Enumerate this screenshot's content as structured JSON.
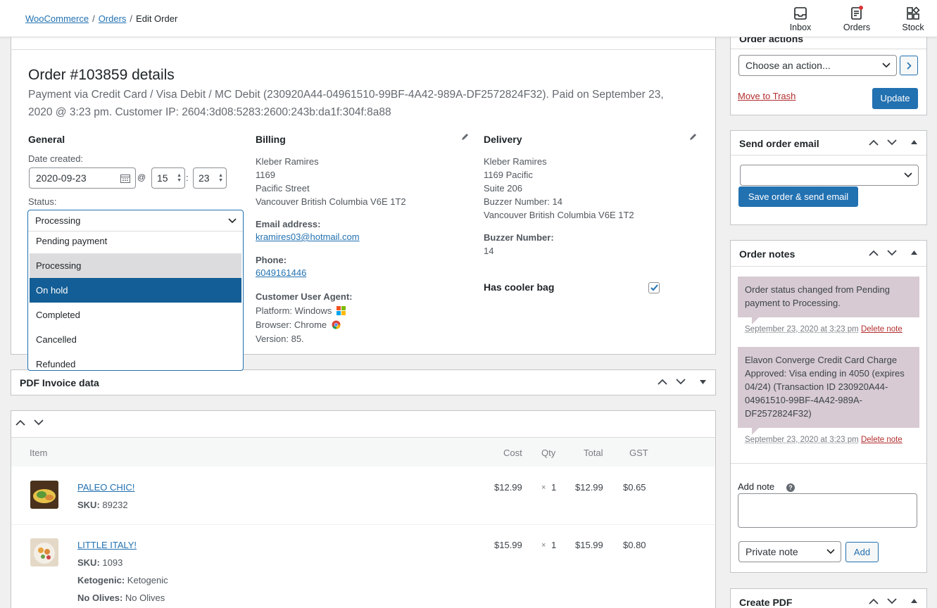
{
  "breadcrumb": {
    "root": "WooCommerce",
    "orders": "Orders",
    "current": "Edit Order",
    "sep": "/"
  },
  "topbar": {
    "inbox": "Inbox",
    "orders": "Orders",
    "stock": "Stock"
  },
  "order": {
    "title": "Order #103859 details",
    "payment_line1": "Payment via Credit Card / Visa Debit / MC Debit (230920A44-04961510-99BF-4A42-989A-DF2572824F32). Paid on September 23,",
    "payment_line2": "2020 @ 3:23 pm. Customer IP: 2604:3d08:5283:2600:243b:da1f:304f:8a88"
  },
  "general": {
    "heading": "General",
    "date_label": "Date created:",
    "date": "2020-09-23",
    "at": "@",
    "hour": "15",
    "colon": ":",
    "minute": "23",
    "status_label": "Status:",
    "status_value": "Processing",
    "status_options": [
      "Pending payment",
      "Processing",
      "On hold",
      "Completed",
      "Cancelled",
      "Refunded"
    ]
  },
  "billing": {
    "heading": "Billing",
    "address": [
      "Kleber Ramires",
      "1169",
      "Pacific Street",
      "Vancouver British Columbia V6E 1T2"
    ],
    "email_label": "Email address:",
    "email": "kramires03@hotmail.com",
    "phone_label": "Phone:",
    "phone": "6049161446",
    "ua_label": "Customer User Agent:",
    "platform": "Platform: Windows",
    "browser": "Browser: Chrome",
    "version": "Version: 85."
  },
  "delivery": {
    "heading": "Delivery",
    "address": [
      "Kleber Ramires",
      "1169 Pacific",
      "Suite 206",
      "Buzzer Number: 14",
      "Vancouver British Columbia V6E 1T2"
    ],
    "buzzer_label": "Buzzer Number:",
    "buzzer": "14",
    "cooler_label": "Has cooler bag",
    "cooler_checked": true
  },
  "pdf_invoice": {
    "heading": "PDF Invoice data"
  },
  "items": {
    "headers": {
      "item": "Item",
      "cost": "Cost",
      "qty": "Qty",
      "total": "Total",
      "gst": "GST"
    },
    "rows": [
      {
        "name": "PALEO CHIC!",
        "sku_label": "SKU:",
        "sku": "89232",
        "cost": "$12.99",
        "qty_x": "×",
        "qty": "1",
        "total": "$12.99",
        "gst": "$0.65"
      },
      {
        "name": "LITTLE ITALY!",
        "sku_label": "SKU:",
        "sku": "1093",
        "cost": "$15.99",
        "qty_x": "×",
        "qty": "1",
        "total": "$15.99",
        "gst": "$0.80",
        "meta": [
          {
            "k": "Ketogenic:",
            "v": "Ketogenic"
          },
          {
            "k": "No Olives:",
            "v": "No Olives"
          }
        ]
      }
    ]
  },
  "order_actions": {
    "heading": "Order actions",
    "select": "Choose an action...",
    "trash": "Move to Trash",
    "update": "Update"
  },
  "send_email": {
    "heading": "Send order email",
    "select": "",
    "button": "Save order & send email"
  },
  "order_notes": {
    "heading": "Order notes",
    "notes": [
      {
        "text": "Order status changed from Pending payment to Processing.",
        "date": "September 23, 2020 at 3:23 pm",
        "delete": "Delete note"
      },
      {
        "text": "Elavon Converge Credit Card Charge Approved: Visa ending in 4050 (expires 04/24) (Transaction ID 230920A44-04961510-99BF-4A42-989A-DF2572824F32)",
        "date": "September 23, 2020 at 3:23 pm",
        "delete": "Delete note"
      }
    ],
    "add_note_label": "Add note",
    "add_note_value": "",
    "note_type": "Private note",
    "add_button": "Add"
  },
  "create_pdf": {
    "heading": "Create PDF"
  },
  "colors": {
    "accent": "#2271b1",
    "selected_option": "#135e96",
    "hover_option": "#dcdcde",
    "note_bg": "#d7cad2",
    "delete": "#b32d2e"
  }
}
